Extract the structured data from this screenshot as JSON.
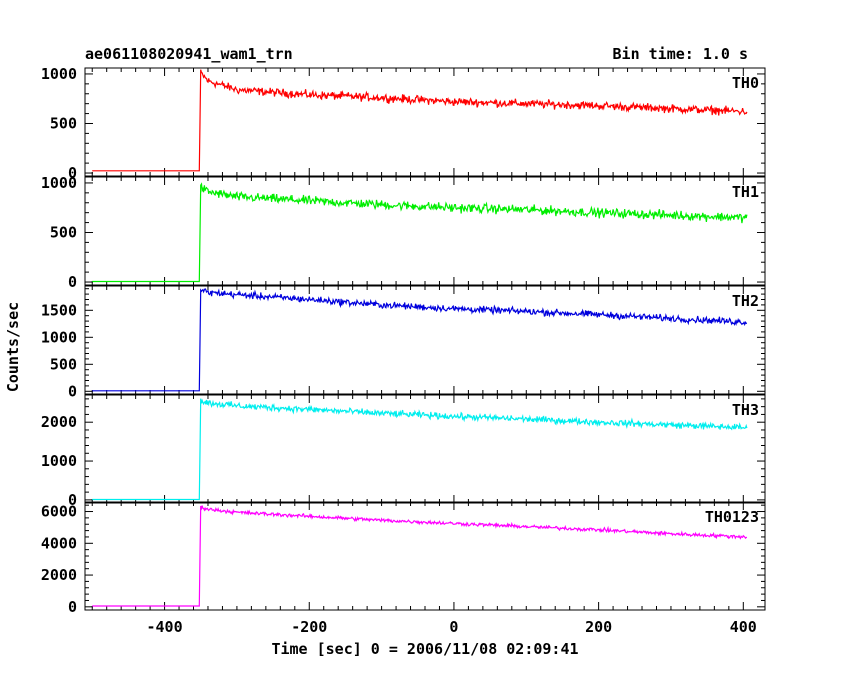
{
  "header": {
    "title": "ae061108020941_wam1_trn",
    "bin_time": "Bin time: 1.0 s"
  },
  "chart_data": {
    "type": "line",
    "title": "ae061108020941_wam1_trn",
    "subtitle": "Bin time: 1.0 s",
    "xlabel": "Time [sec] 0 = 2006/11/08 02:09:41",
    "ylabel": "Counts/sec",
    "xlim": [
      -510,
      430
    ],
    "x_ticks": [
      -400,
      -200,
      0,
      200,
      400
    ],
    "x_start": -500,
    "x_onset": -352,
    "x_end": 405,
    "panels": [
      {
        "name": "TH0",
        "color": "#ff0000",
        "ylim": [
          -30,
          1060
        ],
        "y_ticks": [
          0,
          500,
          1000
        ],
        "baseline": 22,
        "points": [
          [
            -352,
            22
          ],
          [
            -350,
            1010
          ],
          [
            -340,
            930
          ],
          [
            -300,
            840
          ],
          [
            -200,
            790
          ],
          [
            -100,
            760
          ],
          [
            0,
            720
          ],
          [
            100,
            700
          ],
          [
            200,
            680
          ],
          [
            300,
            650
          ],
          [
            405,
            620
          ]
        ],
        "noise": 40
      },
      {
        "name": "TH1",
        "color": "#00ee00",
        "ylim": [
          -30,
          1060
        ],
        "y_ticks": [
          0,
          500,
          1000
        ],
        "baseline": 5,
        "points": [
          [
            -352,
            5
          ],
          [
            -350,
            960
          ],
          [
            -340,
            910
          ],
          [
            -300,
            860
          ],
          [
            -200,
            820
          ],
          [
            -100,
            780
          ],
          [
            0,
            750
          ],
          [
            100,
            730
          ],
          [
            200,
            700
          ],
          [
            300,
            675
          ],
          [
            405,
            650
          ]
        ],
        "noise": 45
      },
      {
        "name": "TH2",
        "color": "#0000dd",
        "ylim": [
          -50,
          1950
        ],
        "y_ticks": [
          0,
          500,
          1000,
          1500
        ],
        "baseline": 10,
        "points": [
          [
            -352,
            10
          ],
          [
            -350,
            1880
          ],
          [
            -340,
            1830
          ],
          [
            -300,
            1790
          ],
          [
            -200,
            1700
          ],
          [
            -100,
            1600
          ],
          [
            0,
            1530
          ],
          [
            100,
            1480
          ],
          [
            200,
            1420
          ],
          [
            300,
            1350
          ],
          [
            405,
            1280
          ]
        ],
        "noise": 60
      },
      {
        "name": "TH3",
        "color": "#00eeee",
        "ylim": [
          -80,
          2700
        ],
        "y_ticks": [
          0,
          1000,
          2000
        ],
        "baseline": 10,
        "points": [
          [
            -352,
            10
          ],
          [
            -350,
            2550
          ],
          [
            -340,
            2500
          ],
          [
            -300,
            2420
          ],
          [
            -200,
            2330
          ],
          [
            -100,
            2230
          ],
          [
            0,
            2150
          ],
          [
            100,
            2080
          ],
          [
            200,
            2000
          ],
          [
            300,
            1930
          ],
          [
            405,
            1860
          ]
        ],
        "noise": 80
      },
      {
        "name": "TH0123",
        "color": "#ff00ff",
        "ylim": [
          -200,
          6600
        ],
        "y_ticks": [
          0,
          2000,
          4000,
          6000
        ],
        "baseline": 50,
        "points": [
          [
            -352,
            50
          ],
          [
            -350,
            6300
          ],
          [
            -340,
            6150
          ],
          [
            -300,
            5950
          ],
          [
            -200,
            5700
          ],
          [
            -100,
            5450
          ],
          [
            0,
            5250
          ],
          [
            100,
            5050
          ],
          [
            200,
            4850
          ],
          [
            300,
            4600
          ],
          [
            405,
            4400
          ]
        ],
        "noise": 110
      }
    ]
  }
}
